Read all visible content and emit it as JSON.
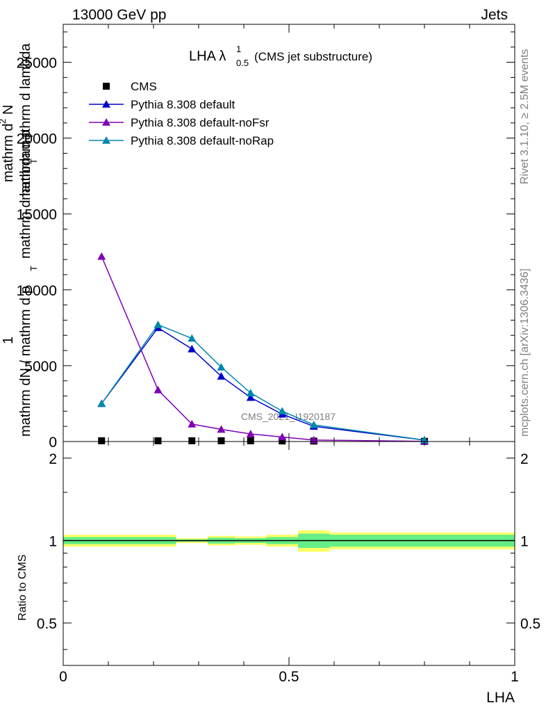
{
  "header": {
    "left": "13000 GeV pp",
    "right": "Jets",
    "side_top": "Rivet 3.1.10, ≥ 2.5M events",
    "side_bottom": "mcplots.cern.ch [arXiv:1306.3436]",
    "watermark": "CMS_2021_I1920187"
  },
  "chart_data": [
    {
      "type": "line",
      "title_main": "LHA λ",
      "title_sup": "1",
      "title_sub": "0.5",
      "title_note": "(CMS jet substructure)",
      "ylabel_lines": [
        "1",
        "mathrm dN / mathrm d p",
        "T",
        "mathrm d lambda",
        "mathrm d",
        "2",
        "N",
        "mathrm d p",
        "T",
        "mathrm d lambda"
      ],
      "xlim": [
        0,
        1
      ],
      "ylim": [
        0,
        27500
      ],
      "y_ticks": [
        0,
        5000,
        10000,
        15000,
        20000,
        25000
      ],
      "y_tick_labels": [
        "0",
        "5000",
        "10000",
        "15000",
        "20000",
        "25000"
      ],
      "legend_position": "top-left",
      "series": [
        {
          "name": "CMS",
          "color": "#000000",
          "marker": "square",
          "x": [
            0.085,
            0.21,
            0.285,
            0.35,
            0.415,
            0.485,
            0.555,
            0.8
          ],
          "y": [
            50,
            50,
            50,
            50,
            50,
            40,
            30,
            10
          ]
        },
        {
          "name": "Pythia 8.308 default",
          "color": "#0000cc",
          "marker": "triangle",
          "x": [
            0.085,
            0.21,
            0.285,
            0.35,
            0.415,
            0.485,
            0.555,
            0.8
          ],
          "y": [
            2500,
            7500,
            6100,
            4300,
            2900,
            1800,
            1000,
            100
          ]
        },
        {
          "name": "Pythia 8.308 default-noFsr",
          "color": "#7f00b2",
          "marker": "triangle",
          "x": [
            0.085,
            0.21,
            0.285,
            0.35,
            0.415,
            0.485,
            0.555,
            0.8
          ],
          "y": [
            12200,
            3400,
            1150,
            800,
            500,
            300,
            100,
            10
          ]
        },
        {
          "name": "Pythia 8.308 default-noRap",
          "color": "#0088aa",
          "marker": "triangle",
          "x": [
            0.085,
            0.21,
            0.285,
            0.35,
            0.415,
            0.485,
            0.555,
            0.8
          ],
          "y": [
            2500,
            7700,
            6800,
            4900,
            3200,
            2000,
            1100,
            100
          ]
        }
      ]
    },
    {
      "type": "area",
      "ylabel": "Ratio to CMS",
      "xlabel": "LHA",
      "xlim": [
        0,
        1
      ],
      "ylim": [
        0.35,
        2.3
      ],
      "log_scale_y": true,
      "y_ticks": [
        0.5,
        1,
        2
      ],
      "y_tick_labels": [
        "0.5",
        "1",
        "2"
      ],
      "x_ticks": [
        0,
        0.5,
        1
      ],
      "x_tick_labels": [
        "0",
        "0.5",
        "1"
      ],
      "band_colors": {
        "stat": "#66ee88",
        "total": "#ffff66"
      },
      "bins": [
        {
          "x0": 0.0,
          "x1": 0.25,
          "stat": 0.03,
          "total": 0.05
        },
        {
          "x0": 0.25,
          "x1": 0.32,
          "stat": 0.01,
          "total": 0.02
        },
        {
          "x0": 0.32,
          "x1": 0.38,
          "stat": 0.025,
          "total": 0.04
        },
        {
          "x0": 0.38,
          "x1": 0.45,
          "stat": 0.02,
          "total": 0.035
        },
        {
          "x0": 0.45,
          "x1": 0.52,
          "stat": 0.03,
          "total": 0.05
        },
        {
          "x0": 0.52,
          "x1": 0.59,
          "stat": 0.06,
          "total": 0.09
        },
        {
          "x0": 0.59,
          "x1": 1.0,
          "stat": 0.05,
          "total": 0.07
        }
      ]
    }
  ]
}
